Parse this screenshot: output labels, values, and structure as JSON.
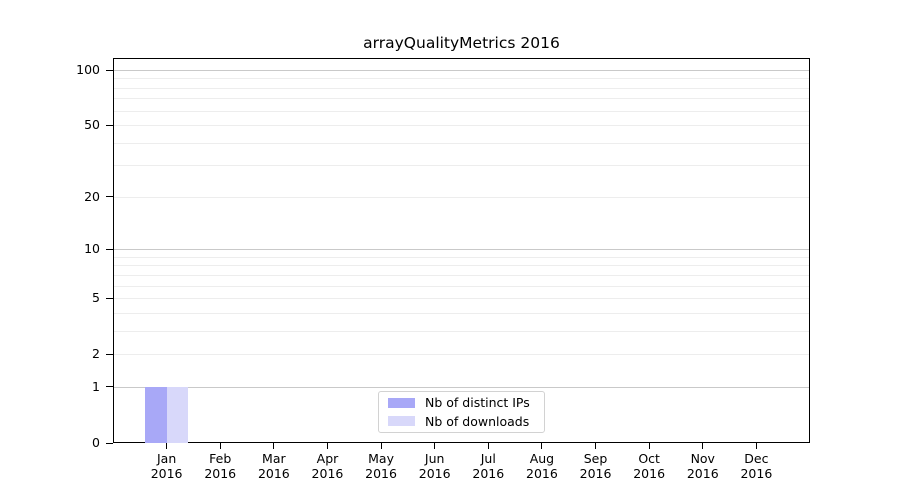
{
  "title": "arrayQualityMetrics 2016",
  "colors": {
    "background": "#ffffff",
    "axis": "#000000",
    "major_grid": "#c9c9c9",
    "minor_grid": "#ededed",
    "legend_border": "#d2d2d2",
    "distinct_ips_bar": "#a8a8f7",
    "downloads_bar": "#d8d8fa"
  },
  "chart_data": {
    "type": "bar",
    "title": "arrayQualityMetrics 2016",
    "categories": [
      "Jan 2016",
      "Feb 2016",
      "Mar 2016",
      "Apr 2016",
      "May 2016",
      "Jun 2016",
      "Jul 2016",
      "Aug 2016",
      "Sep 2016",
      "Oct 2016",
      "Nov 2016",
      "Dec 2016"
    ],
    "series": [
      {
        "name": "Nb of distinct IPs",
        "color": "#a8a8f7",
        "values": [
          1,
          0,
          0,
          0,
          0,
          0,
          0,
          0,
          0,
          0,
          0,
          0
        ]
      },
      {
        "name": "Nb of downloads",
        "color": "#d8d8fa",
        "values": [
          1,
          0,
          0,
          0,
          0,
          0,
          0,
          0,
          0,
          0,
          0,
          0
        ]
      }
    ],
    "xlabel": "",
    "ylabel": "",
    "yscale": "log1p",
    "yticks": [
      0,
      1,
      2,
      5,
      10,
      20,
      50,
      100
    ],
    "major_gridlines": [
      1,
      10,
      100
    ],
    "minor_gridlines": [
      2,
      3,
      4,
      5,
      6,
      7,
      8,
      9,
      20,
      30,
      40,
      50,
      60,
      70,
      80,
      90
    ],
    "ylim": [
      0,
      116
    ],
    "grid": "horizontal",
    "legend_position": "lower center"
  },
  "legend": {
    "items": [
      {
        "label": "Nb of distinct IPs"
      },
      {
        "label": "Nb of downloads"
      }
    ]
  }
}
